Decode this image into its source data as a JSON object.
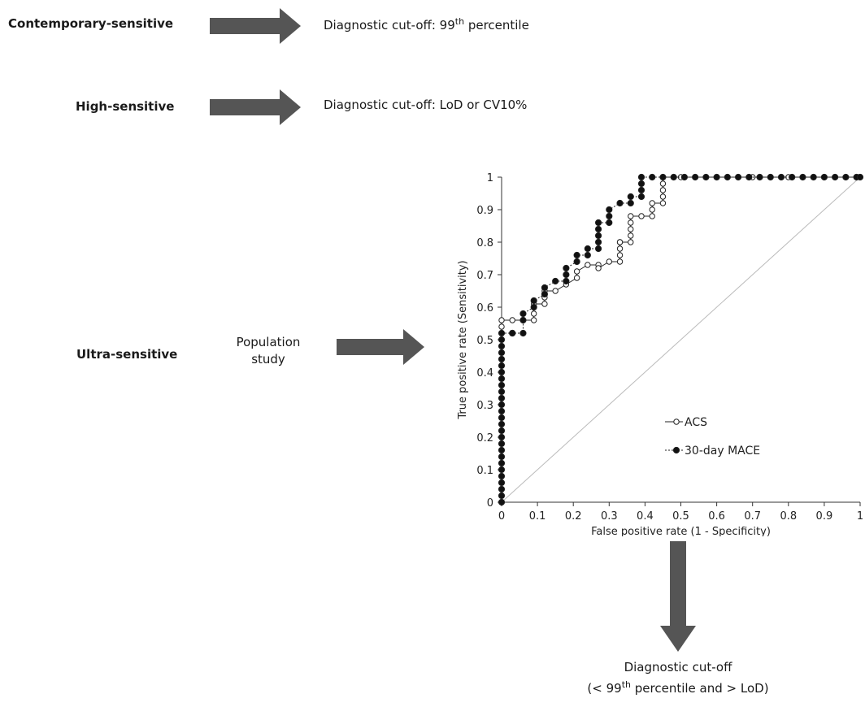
{
  "rows": [
    {
      "name": "Contemporary-sensitive",
      "cutoff_prefix": "Diagnostic cut-off: 99",
      "cutoff_sup": "th",
      "cutoff_suffix": " percentile"
    },
    {
      "name": "High-sensitive",
      "cutoff_text": "Diagnostic cut-off: LoD or CV10%"
    },
    {
      "name": "Ultra-sensitive",
      "study_line1": "Population",
      "study_line2": "study"
    }
  ],
  "bottom": {
    "line1": "Diagnostic cut-off",
    "line2_prefix": "(< 99",
    "line2_sup": "th",
    "line2_suffix": " percentile and > LoD)"
  },
  "colors": {
    "arrow": "#555555",
    "filled": "#111111",
    "open": "#ffffff",
    "diagonal": "#bbbbbb"
  },
  "chart_data": {
    "type": "line",
    "xlabel": "False positive rate (1 - Specificity)",
    "ylabel": "True positive rate (Sensitivity)",
    "xlim": [
      0,
      1
    ],
    "ylim": [
      0,
      1
    ],
    "x_ticks": [
      "0",
      "0.1",
      "0.2",
      "0.3",
      "0.4",
      "0.5",
      "0.6",
      "0.7",
      "0.8",
      "0.9",
      "1"
    ],
    "y_ticks": [
      "0",
      "0.1",
      "0.2",
      "0.3",
      "0.4",
      "0.5",
      "0.6",
      "0.7",
      "0.8",
      "0.9",
      "1"
    ],
    "grid": false,
    "legend_position": "lower-right",
    "series": [
      {
        "name": "ACS",
        "marker": "open-circle",
        "x": [
          0,
          0,
          0,
          0,
          0.03,
          0.06,
          0.09,
          0.09,
          0.09,
          0.09,
          0.12,
          0.12,
          0.12,
          0.15,
          0.18,
          0.21,
          0.21,
          0.24,
          0.27,
          0.27,
          0.3,
          0.33,
          0.33,
          0.33,
          0.33,
          0.33,
          0.36,
          0.36,
          0.36,
          0.36,
          0.36,
          0.39,
          0.42,
          0.42,
          0.42,
          0.45,
          0.45,
          0.45,
          0.45,
          0.45,
          0.5,
          0.6,
          0.7,
          0.8,
          0.9,
          1.0
        ],
        "y": [
          0,
          0.5,
          0.54,
          0.56,
          0.56,
          0.56,
          0.56,
          0.58,
          0.6,
          0.61,
          0.61,
          0.63,
          0.65,
          0.65,
          0.67,
          0.69,
          0.71,
          0.73,
          0.73,
          0.72,
          0.74,
          0.74,
          0.76,
          0.78,
          0.8,
          0.8,
          0.8,
          0.82,
          0.84,
          0.86,
          0.88,
          0.88,
          0.88,
          0.9,
          0.92,
          0.92,
          0.94,
          0.96,
          0.98,
          1.0,
          1.0,
          1.0,
          1.0,
          1.0,
          1.0,
          1.0
        ]
      },
      {
        "name": "30-day MACE",
        "marker": "filled-circle",
        "x": [
          0,
          0,
          0,
          0,
          0,
          0,
          0,
          0,
          0,
          0,
          0,
          0,
          0,
          0,
          0,
          0,
          0,
          0,
          0,
          0,
          0,
          0,
          0,
          0,
          0,
          0,
          0,
          0.03,
          0.03,
          0.06,
          0.06,
          0.06,
          0.09,
          0.09,
          0.12,
          0.12,
          0.15,
          0.18,
          0.18,
          0.18,
          0.21,
          0.21,
          0.24,
          0.24,
          0.27,
          0.27,
          0.27,
          0.27,
          0.27,
          0.3,
          0.3,
          0.3,
          0.33,
          0.36,
          0.36,
          0.39,
          0.39,
          0.39,
          0.39,
          0.42,
          0.45,
          0.48,
          0.51,
          0.54,
          0.57,
          0.6,
          0.63,
          0.66,
          0.69,
          0.72,
          0.75,
          0.78,
          0.81,
          0.84,
          0.87,
          0.9,
          0.93,
          0.96,
          0.99,
          1.0
        ],
        "y": [
          0,
          0.02,
          0.04,
          0.06,
          0.08,
          0.1,
          0.12,
          0.14,
          0.16,
          0.18,
          0.2,
          0.22,
          0.24,
          0.26,
          0.28,
          0.3,
          0.32,
          0.34,
          0.36,
          0.38,
          0.4,
          0.42,
          0.44,
          0.46,
          0.48,
          0.5,
          0.52,
          0.52,
          0.52,
          0.52,
          0.56,
          0.58,
          0.6,
          0.62,
          0.64,
          0.66,
          0.68,
          0.68,
          0.7,
          0.72,
          0.74,
          0.76,
          0.76,
          0.78,
          0.78,
          0.8,
          0.82,
          0.84,
          0.86,
          0.86,
          0.88,
          0.9,
          0.92,
          0.92,
          0.94,
          0.94,
          0.96,
          0.98,
          1.0,
          1.0,
          1.0,
          1.0,
          1.0,
          1.0,
          1.0,
          1.0,
          1.0,
          1.0,
          1.0,
          1.0,
          1.0,
          1.0,
          1.0,
          1.0,
          1.0,
          1.0,
          1.0,
          1.0,
          1.0,
          1.0
        ]
      }
    ]
  }
}
